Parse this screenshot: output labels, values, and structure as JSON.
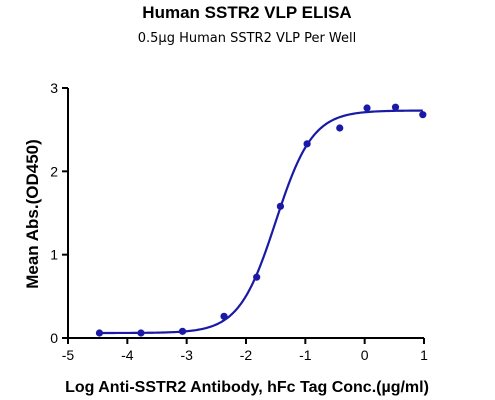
{
  "chart_data": {
    "type": "scatter",
    "title": "Human SSTR2 VLP  ELISA",
    "subtitle": "0.5µg Human SSTR2 VLP Per Well",
    "xlabel": "Log Anti-SSTR2 Antibody, hFc Tag Conc.(µg/ml)",
    "ylabel": "Mean Abs.(OD450)",
    "xlim": [
      -5,
      1
    ],
    "ylim": [
      0,
      3
    ],
    "xticks": [
      "-5",
      "-4",
      "-3",
      "-2",
      "-1",
      "0",
      "1"
    ],
    "yticks": [
      "0",
      "1",
      "2",
      "3"
    ],
    "grid": false,
    "legend": "none",
    "color": "#1a1aa6",
    "points": {
      "x": [
        -4.47,
        -3.77,
        -3.07,
        -2.37,
        -1.82,
        -1.42,
        -0.97,
        -0.42,
        0.04,
        0.52,
        0.98
      ],
      "y": [
        0.06,
        0.06,
        0.08,
        0.26,
        0.73,
        1.58,
        2.33,
        2.52,
        2.76,
        2.77,
        2.68
      ]
    },
    "fit": {
      "model": "4PL",
      "bottom": 0.06,
      "top": 2.73,
      "log_ec50": -1.5,
      "hill": 1.4
    }
  }
}
